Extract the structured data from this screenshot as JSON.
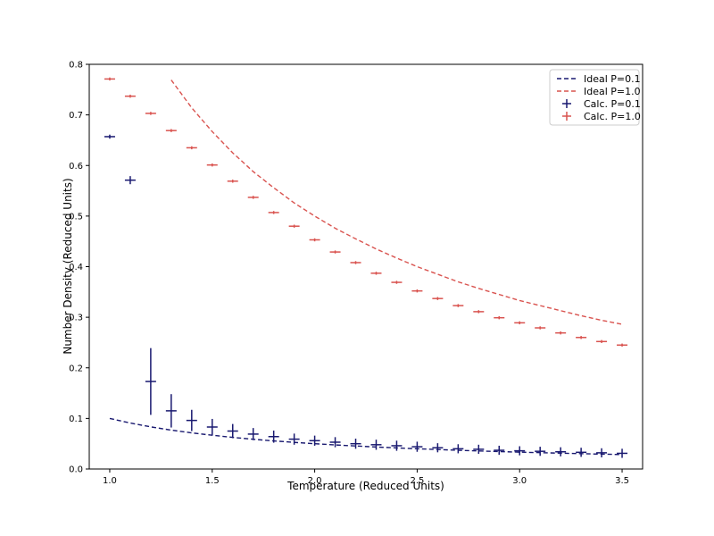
{
  "chart_data": {
    "type": "line",
    "title": "",
    "xlabel": "Temperature (Reduced Units)",
    "ylabel": "Number Density (Reduced Units)",
    "xlim": [
      0.9,
      3.6
    ],
    "ylim": [
      0.0,
      0.8
    ],
    "xticks": [
      "1.0",
      "1.5",
      "2.0",
      "2.5",
      "3.0",
      "3.5"
    ],
    "yticks": [
      "0.0",
      "0.1",
      "0.2",
      "0.3",
      "0.4",
      "0.5",
      "0.6",
      "0.7",
      "0.8"
    ],
    "grid": false,
    "legend_position": "top-right",
    "series": [
      {
        "name": "Ideal P=0.1",
        "style": "dashed-line",
        "color": "#191970",
        "x": [
          1.0,
          1.1,
          1.2,
          1.3,
          1.4,
          1.5,
          1.6,
          1.7,
          1.8,
          1.9,
          2.0,
          2.1,
          2.2,
          2.3,
          2.4,
          2.5,
          2.6,
          2.7,
          2.8,
          2.9,
          3.0,
          3.1,
          3.2,
          3.3,
          3.4,
          3.5
        ],
        "y": [
          0.1,
          0.0909,
          0.0833,
          0.0769,
          0.0714,
          0.0667,
          0.0625,
          0.0588,
          0.0556,
          0.0526,
          0.05,
          0.0476,
          0.0455,
          0.0435,
          0.0417,
          0.04,
          0.0385,
          0.037,
          0.0357,
          0.0345,
          0.0333,
          0.0323,
          0.0313,
          0.0303,
          0.0294,
          0.0286
        ]
      },
      {
        "name": "Ideal P=1.0",
        "style": "dashed-line",
        "color": "#d9534f",
        "x": [
          1.3,
          1.4,
          1.5,
          1.6,
          1.7,
          1.8,
          1.9,
          2.0,
          2.1,
          2.2,
          2.3,
          2.4,
          2.5,
          2.6,
          2.7,
          2.8,
          2.9,
          3.0,
          3.1,
          3.2,
          3.3,
          3.4,
          3.5
        ],
        "y": [
          0.769,
          0.714,
          0.667,
          0.625,
          0.588,
          0.556,
          0.526,
          0.5,
          0.476,
          0.455,
          0.435,
          0.417,
          0.4,
          0.385,
          0.37,
          0.357,
          0.345,
          0.333,
          0.323,
          0.313,
          0.303,
          0.294,
          0.286
        ]
      },
      {
        "name": "Calc. P=0.1",
        "style": "errorbar",
        "color": "#191970",
        "x": [
          1.0,
          1.1,
          1.2,
          1.3,
          1.4,
          1.5,
          1.6,
          1.7,
          1.8,
          1.9,
          2.0,
          2.1,
          2.2,
          2.3,
          2.4,
          2.5,
          2.6,
          2.7,
          2.8,
          2.9,
          3.0,
          3.1,
          3.2,
          3.3,
          3.4,
          3.5
        ],
        "y": [
          0.657,
          0.571,
          0.173,
          0.115,
          0.096,
          0.083,
          0.075,
          0.069,
          0.064,
          0.059,
          0.056,
          0.053,
          0.05,
          0.048,
          0.046,
          0.044,
          0.042,
          0.04,
          0.039,
          0.037,
          0.036,
          0.035,
          0.034,
          0.033,
          0.032,
          0.031
        ],
        "yerr": [
          0.004,
          0.008,
          0.066,
          0.033,
          0.021,
          0.016,
          0.014,
          0.012,
          0.012,
          0.011,
          0.01,
          0.01,
          0.01,
          0.01,
          0.01,
          0.01,
          0.009,
          0.009,
          0.009,
          0.009,
          0.009,
          0.009,
          0.009,
          0.009,
          0.009,
          0.009
        ]
      },
      {
        "name": "Calc. P=1.0",
        "style": "errorbar",
        "color": "#d9534f",
        "x": [
          1.0,
          1.1,
          1.2,
          1.3,
          1.4,
          1.5,
          1.6,
          1.7,
          1.8,
          1.9,
          2.0,
          2.1,
          2.2,
          2.3,
          2.4,
          2.5,
          2.6,
          2.7,
          2.8,
          2.9,
          3.0,
          3.1,
          3.2,
          3.3,
          3.4,
          3.5
        ],
        "y": [
          0.771,
          0.737,
          0.703,
          0.669,
          0.635,
          0.601,
          0.569,
          0.537,
          0.507,
          0.48,
          0.453,
          0.429,
          0.408,
          0.387,
          0.369,
          0.352,
          0.337,
          0.323,
          0.311,
          0.299,
          0.289,
          0.279,
          0.269,
          0.26,
          0.252,
          0.245
        ],
        "yerr": [
          0.003,
          0.003,
          0.003,
          0.003,
          0.003,
          0.003,
          0.003,
          0.003,
          0.003,
          0.003,
          0.003,
          0.003,
          0.003,
          0.003,
          0.003,
          0.003,
          0.003,
          0.003,
          0.003,
          0.003,
          0.003,
          0.003,
          0.003,
          0.003,
          0.003,
          0.003
        ]
      }
    ]
  }
}
